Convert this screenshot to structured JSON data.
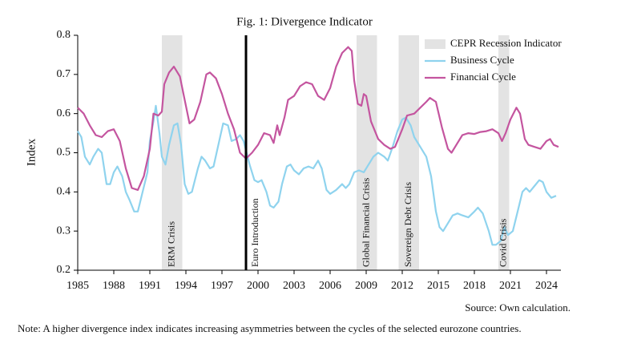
{
  "chart_data": {
    "type": "line",
    "title": "Fig. 1: Divergence Indicator",
    "y_label": "Index",
    "xlim": [
      1985,
      2025.2
    ],
    "ylim": [
      0.2,
      0.8
    ],
    "xticks": [
      1985,
      1988,
      1991,
      1994,
      1997,
      2000,
      2003,
      2006,
      2009,
      2012,
      2015,
      2018,
      2021,
      2024
    ],
    "yticks": [
      0.2,
      0.3,
      0.4,
      0.5,
      0.6,
      0.7,
      0.8
    ],
    "legend": "top-right",
    "recession_name": "CEPR Recession Indicator",
    "recession_color": "#e3e3e3",
    "recessions": [
      {
        "start": 1992.0,
        "end": 1993.7,
        "label": "ERM Crisis"
      },
      {
        "start": 2008.2,
        "end": 2009.9,
        "label": "Global Financial Crisis"
      },
      {
        "start": 2011.7,
        "end": 2013.4,
        "label": "Sovereign Debt Crisis"
      },
      {
        "start": 2020.0,
        "end": 2020.9,
        "label": "Covid Crisis"
      }
    ],
    "annotations": [
      {
        "x": 1999,
        "label": "Euro Introduction"
      }
    ],
    "series": [
      {
        "name": "Business Cycle",
        "color": "#8fd3ee",
        "x": [
          1985,
          1985.3,
          1985.6,
          1986,
          1986.3,
          1986.7,
          1987,
          1987.4,
          1987.7,
          1988,
          1988.3,
          1988.7,
          1989,
          1989.3,
          1989.7,
          1990,
          1990.4,
          1990.8,
          1991,
          1991.3,
          1991.5,
          1991.8,
          1992,
          1992.3,
          1992.6,
          1993,
          1993.3,
          1993.6,
          1993.9,
          1994.2,
          1994.5,
          1995,
          1995.3,
          1995.6,
          1996,
          1996.3,
          1996.7,
          1997.1,
          1997.5,
          1997.8,
          1998.2,
          1998.5,
          1998.8,
          1999.3,
          1999.7,
          2000,
          2000.3,
          2000.7,
          2001,
          2001.3,
          2001.7,
          2002,
          2002.4,
          2002.7,
          2003,
          2003.4,
          2003.8,
          2004.2,
          2004.6,
          2005,
          2005.3,
          2005.7,
          2006,
          2006.5,
          2007,
          2007.3,
          2007.6,
          2008,
          2008.4,
          2008.8,
          2009.2,
          2009.6,
          2010,
          2010.5,
          2010.8,
          2011.2,
          2011.6,
          2012,
          2012.3,
          2012.7,
          2013,
          2013.5,
          2014,
          2014.4,
          2014.8,
          2015.1,
          2015.4,
          2015.8,
          2016.2,
          2016.6,
          2017,
          2017.5,
          2018,
          2018.3,
          2018.7,
          2019.2,
          2019.5,
          2019.8,
          2020.2,
          2020.5,
          2020.8,
          2021.2,
          2021.6,
          2022,
          2022.3,
          2022.6,
          2023,
          2023.4,
          2023.7,
          2024,
          2024.4,
          2024.8
        ],
        "values": [
          0.555,
          0.54,
          0.49,
          0.47,
          0.49,
          0.51,
          0.5,
          0.42,
          0.42,
          0.45,
          0.465,
          0.44,
          0.4,
          0.38,
          0.35,
          0.35,
          0.4,
          0.45,
          0.53,
          0.58,
          0.62,
          0.55,
          0.49,
          0.47,
          0.52,
          0.57,
          0.575,
          0.52,
          0.42,
          0.395,
          0.4,
          0.46,
          0.49,
          0.48,
          0.46,
          0.465,
          0.52,
          0.575,
          0.57,
          0.53,
          0.535,
          0.545,
          0.53,
          0.47,
          0.43,
          0.425,
          0.43,
          0.4,
          0.365,
          0.36,
          0.375,
          0.42,
          0.465,
          0.47,
          0.455,
          0.445,
          0.46,
          0.465,
          0.46,
          0.48,
          0.46,
          0.405,
          0.395,
          0.405,
          0.42,
          0.41,
          0.42,
          0.45,
          0.455,
          0.45,
          0.47,
          0.49,
          0.5,
          0.49,
          0.48,
          0.515,
          0.555,
          0.585,
          0.59,
          0.57,
          0.54,
          0.515,
          0.49,
          0.44,
          0.35,
          0.31,
          0.3,
          0.32,
          0.34,
          0.345,
          0.34,
          0.335,
          0.35,
          0.36,
          0.345,
          0.3,
          0.265,
          0.265,
          0.275,
          0.31,
          0.29,
          0.3,
          0.35,
          0.4,
          0.41,
          0.4,
          0.415,
          0.43,
          0.425,
          0.4,
          0.385,
          0.39
        ]
      },
      {
        "name": "Financial Cycle",
        "color": "#c4559f",
        "x": [
          1985,
          1985.5,
          1986,
          1986.5,
          1987,
          1987.5,
          1988,
          1988.5,
          1989,
          1989.5,
          1990,
          1990.5,
          1991,
          1991.3,
          1991.7,
          1992,
          1992.2,
          1992.6,
          1993,
          1993.5,
          1994,
          1994.3,
          1994.7,
          1995.2,
          1995.7,
          1996,
          1996.5,
          1997,
          1997.5,
          1998,
          1998.5,
          1999,
          1999.5,
          2000,
          2000.5,
          2001,
          2001.3,
          2001.6,
          2001.8,
          2002.2,
          2002.5,
          2003,
          2003.5,
          2004,
          2004.5,
          2005,
          2005.5,
          2006,
          2006.5,
          2007,
          2007.5,
          2007.8,
          2008,
          2008.3,
          2008.6,
          2008.8,
          2009,
          2009.4,
          2010,
          2010.5,
          2011,
          2011.4,
          2012,
          2012.4,
          2013,
          2013.5,
          2014,
          2014.3,
          2014.8,
          2015.3,
          2015.8,
          2016.1,
          2016.5,
          2017,
          2017.5,
          2018,
          2018.5,
          2019,
          2019.5,
          2020,
          2020.3,
          2020.6,
          2021,
          2021.5,
          2021.8,
          2022.2,
          2022.5,
          2023,
          2023.5,
          2024,
          2024.3,
          2024.6,
          2025
        ],
        "values": [
          0.615,
          0.6,
          0.57,
          0.545,
          0.54,
          0.555,
          0.56,
          0.53,
          0.46,
          0.41,
          0.405,
          0.44,
          0.51,
          0.6,
          0.595,
          0.605,
          0.675,
          0.705,
          0.72,
          0.695,
          0.62,
          0.575,
          0.585,
          0.63,
          0.7,
          0.705,
          0.69,
          0.65,
          0.6,
          0.56,
          0.5,
          0.485,
          0.5,
          0.52,
          0.55,
          0.545,
          0.525,
          0.57,
          0.545,
          0.59,
          0.635,
          0.645,
          0.67,
          0.68,
          0.675,
          0.645,
          0.635,
          0.665,
          0.72,
          0.755,
          0.77,
          0.76,
          0.685,
          0.625,
          0.62,
          0.65,
          0.645,
          0.58,
          0.535,
          0.52,
          0.51,
          0.515,
          0.56,
          0.595,
          0.6,
          0.615,
          0.63,
          0.64,
          0.63,
          0.565,
          0.51,
          0.5,
          0.52,
          0.545,
          0.55,
          0.548,
          0.553,
          0.555,
          0.56,
          0.55,
          0.53,
          0.55,
          0.585,
          0.615,
          0.6,
          0.535,
          0.52,
          0.515,
          0.51,
          0.53,
          0.535,
          0.52,
          0.515
        ]
      }
    ],
    "source": "Source: Own calculation.",
    "note": "Note: A higher divergence index indicates increasing asymmetries between the cycles of the selected eurozone countries."
  }
}
